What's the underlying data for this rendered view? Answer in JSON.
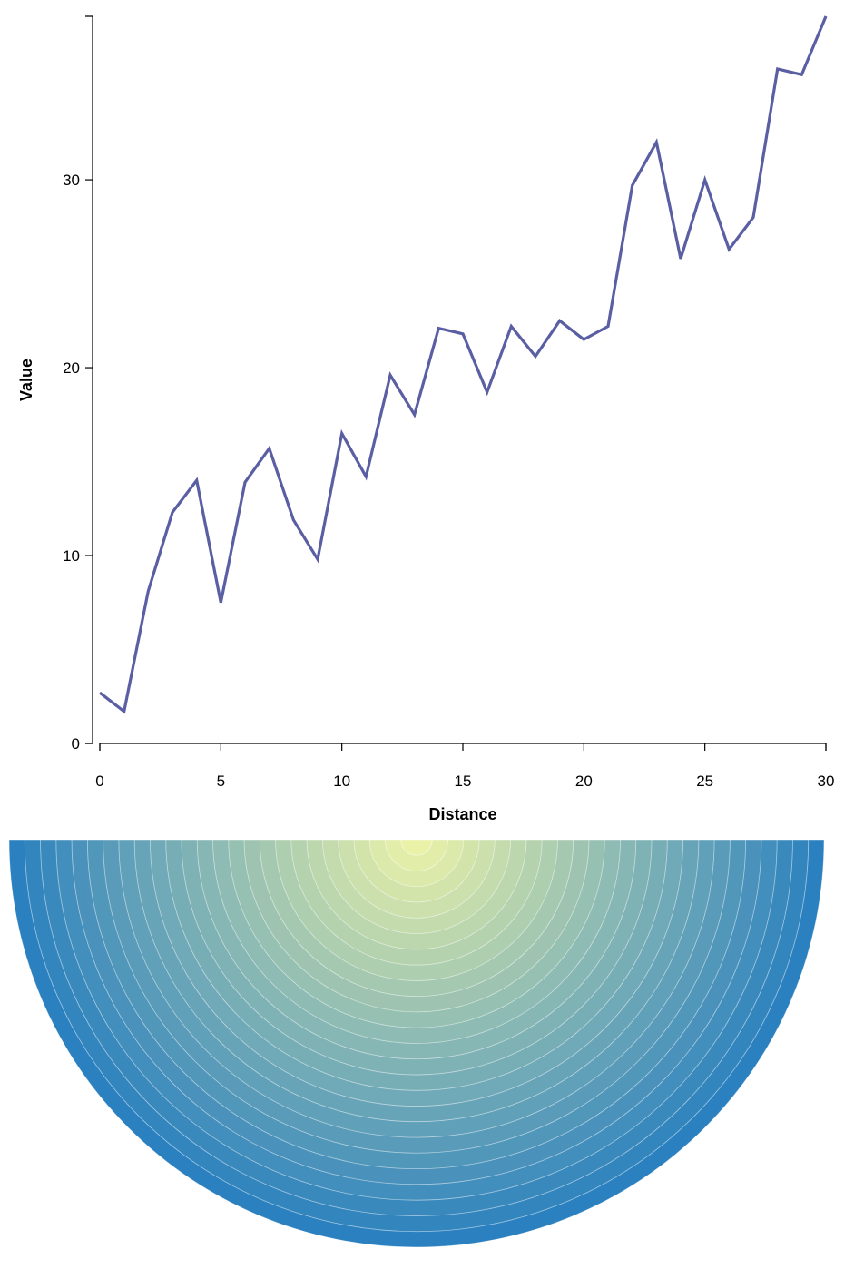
{
  "chart_data": [
    {
      "type": "line",
      "title": "",
      "xlabel": "Distance",
      "ylabel": "Value",
      "xlim": [
        0,
        30
      ],
      "ylim": [
        0,
        38.7
      ],
      "x_ticks": [
        0,
        5,
        10,
        15,
        20,
        25,
        30
      ],
      "y_ticks": [
        0,
        10,
        20,
        30
      ],
      "grid": false,
      "colors": {
        "line": "#5a5ea3"
      },
      "series": [
        {
          "x": [
            0,
            1,
            2,
            3,
            4,
            5,
            6,
            7,
            8,
            9,
            10,
            11,
            12,
            13,
            14,
            15,
            16,
            17,
            18,
            19,
            20,
            21,
            22,
            23,
            24,
            25,
            26,
            27,
            28,
            29,
            30
          ],
          "values": [
            2.7,
            1.7,
            8.1,
            12.3,
            14.0,
            7.5,
            13.9,
            15.7,
            11.9,
            9.8,
            16.5,
            14.2,
            19.6,
            17.5,
            22.1,
            21.8,
            18.7,
            22.2,
            20.6,
            22.5,
            21.5,
            22.2,
            29.7,
            32.0,
            25.8,
            30.0,
            26.3,
            28.0,
            35.9,
            35.6,
            38.7
          ]
        }
      ]
    },
    {
      "type": "heatmap",
      "shape": "semicircle-rings",
      "rings": 26,
      "color_inner": "#eaf2a8",
      "color_outer": "#2b80bf"
    }
  ]
}
